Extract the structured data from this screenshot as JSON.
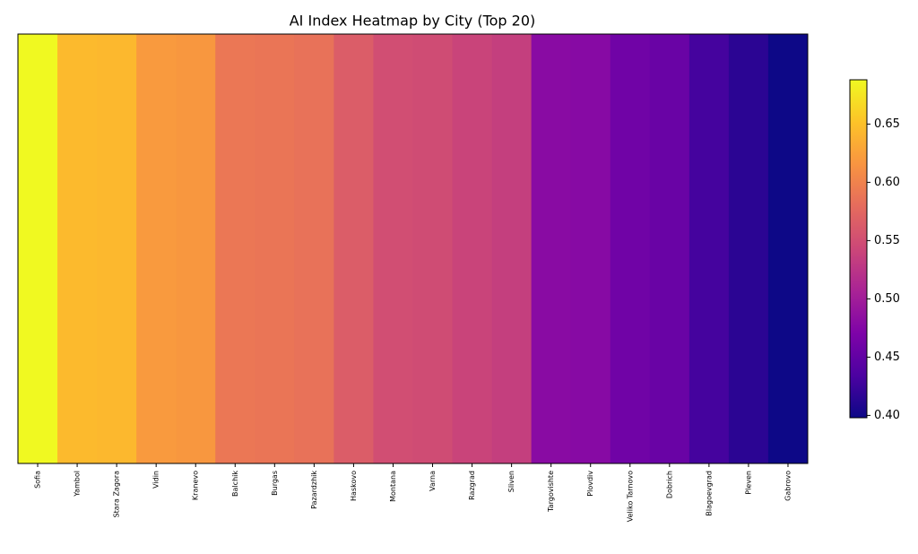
{
  "chart_data": {
    "type": "heatmap",
    "title": "AI Index Heatmap by City (Top 20)",
    "categories": [
      "Sofia",
      "Yambol",
      "Stara Zagora",
      "Vidin",
      "Kranevo",
      "Balchik",
      "Burgas",
      "Pazardzhik",
      "Haskovo",
      "Montana",
      "Varna",
      "Razgrad",
      "Sliven",
      "Targovishte",
      "Plovdiv",
      "Veliko Tarnovo",
      "Dobrich",
      "Blagoevgrad",
      "Pleven",
      "Gabrovo"
    ],
    "values": [
      0.688,
      0.645,
      0.643,
      0.62,
      0.618,
      0.59,
      0.588,
      0.585,
      0.565,
      0.55,
      0.548,
      0.54,
      0.535,
      0.48,
      0.478,
      0.46,
      0.455,
      0.43,
      0.415,
      0.398
    ],
    "colormap": "plasma",
    "clim": [
      0.398,
      0.688
    ],
    "colorbar_ticks": [
      {
        "value": 0.4,
        "label": "0.40"
      },
      0.45,
      {
        "value": 0.5,
        "label": "0.50"
      },
      0.55,
      {
        "value": 0.6,
        "label": "0.60"
      },
      0.65
    ]
  }
}
